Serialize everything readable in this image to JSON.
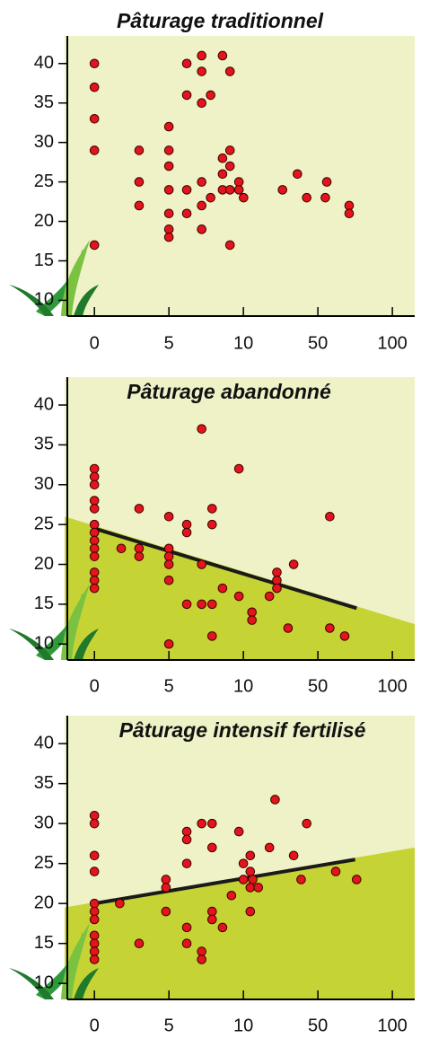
{
  "chart_data": [
    {
      "type": "scatter",
      "title": "Pâturage traditionnel",
      "color": "#e3141c",
      "background": "#eef2c6",
      "x": [
        0,
        0,
        0,
        0,
        0,
        3,
        3,
        3,
        5,
        5,
        5,
        5,
        5,
        5,
        5,
        6.2,
        6.2,
        6.2,
        6.2,
        7.2,
        7.2,
        7.2,
        7.2,
        7.2,
        7.2,
        7.8,
        7.8,
        8.6,
        8.6,
        8.6,
        8.6,
        9.1,
        9.1,
        9.1,
        9.1,
        9.1,
        9.7,
        9.7,
        10.1,
        31,
        39,
        44,
        56,
        55,
        71,
        71
      ],
      "y": [
        40,
        37,
        33,
        29,
        17,
        29,
        25,
        22,
        32,
        29,
        27,
        24,
        21,
        19,
        18,
        40,
        36,
        24,
        21,
        41,
        39,
        35,
        25,
        22,
        19,
        36,
        23,
        41,
        28,
        26,
        24,
        39,
        29,
        27,
        24,
        17,
        25,
        24,
        23,
        24,
        26,
        23,
        25,
        23,
        22,
        21
      ],
      "xlim": [
        -2,
        115
      ],
      "ylim": [
        8,
        43.5
      ],
      "xticks": [
        0,
        5,
        10,
        50,
        100
      ],
      "yticks": [
        10,
        15,
        20,
        25,
        30,
        35,
        40
      ]
    },
    {
      "type": "scatter",
      "title": "Pâturage abandonné",
      "color": "#e3141c",
      "background": "#eef2c6",
      "shade_color": "#c6d334",
      "x": [
        0,
        0,
        0,
        0,
        0,
        0,
        0,
        0,
        0,
        0,
        0,
        0,
        0,
        1.8,
        3,
        3,
        3,
        5,
        5,
        5,
        5,
        5,
        5,
        6.2,
        6.2,
        6.2,
        7.2,
        7.2,
        7.2,
        7.9,
        7.9,
        7.9,
        7.9,
        8.6,
        9.7,
        9.7,
        14.6,
        14.6,
        24,
        28,
        28,
        28,
        34,
        37,
        58,
        58,
        68
      ],
      "y": [
        32,
        31,
        30,
        28,
        27,
        25,
        24,
        23,
        22,
        21,
        19,
        18,
        17,
        22,
        27,
        22,
        21,
        26,
        22,
        21,
        20,
        18,
        10,
        25,
        24,
        15,
        37,
        20,
        15,
        27,
        25,
        15,
        11,
        17,
        16,
        32,
        14,
        13,
        16,
        19,
        18,
        17,
        12,
        20,
        26,
        12,
        11
      ],
      "trend": {
        "x": [
          0,
          76
        ],
        "y": [
          24.5,
          14.5
        ]
      },
      "shade": {
        "x": [
          -2,
          115
        ],
        "y": [
          26,
          12.5
        ]
      },
      "xlim": [
        -2,
        115
      ],
      "ylim": [
        8,
        43.5
      ],
      "xticks": [
        0,
        5,
        10,
        50,
        100
      ],
      "yticks": [
        10,
        15,
        20,
        25,
        30,
        35,
        40
      ]
    },
    {
      "type": "scatter",
      "title": "Pâturage intensif fertilisé",
      "color": "#e3141c",
      "background": "#eef2c6",
      "shade_color": "#c6d334",
      "x": [
        0,
        0,
        0,
        0,
        0,
        0,
        0,
        0,
        0,
        0,
        0,
        1.7,
        3,
        4.8,
        4.8,
        4.8,
        6.2,
        6.2,
        6.2,
        6.2,
        6.2,
        7.2,
        7.2,
        7.2,
        7.9,
        7.9,
        7.9,
        7.9,
        8.6,
        9.2,
        9.7,
        10,
        10,
        13.7,
        13.7,
        13.7,
        13.7,
        15,
        18,
        24,
        27,
        37,
        41,
        44,
        62,
        76
      ],
      "y": [
        31,
        30,
        26,
        24,
        20,
        19,
        18,
        16,
        15,
        14,
        13,
        20,
        15,
        23,
        22,
        19,
        29,
        28,
        25,
        17,
        15,
        30,
        14,
        13,
        30,
        27,
        19,
        18,
        17,
        21,
        29,
        25,
        23,
        26,
        24,
        22,
        19,
        23,
        22,
        27,
        33,
        26,
        23,
        30,
        24,
        23
      ],
      "trend": {
        "x": [
          0,
          75
        ],
        "y": [
          20,
          25.5
        ]
      },
      "shade": {
        "x": [
          -2,
          115
        ],
        "y": [
          19.5,
          27
        ]
      },
      "xlim": [
        -2,
        115
      ],
      "ylim": [
        8,
        43.5
      ],
      "xticks": [
        0,
        5,
        10,
        50,
        100
      ],
      "yticks": [
        10,
        15,
        20,
        25,
        30,
        35,
        40
      ]
    }
  ]
}
